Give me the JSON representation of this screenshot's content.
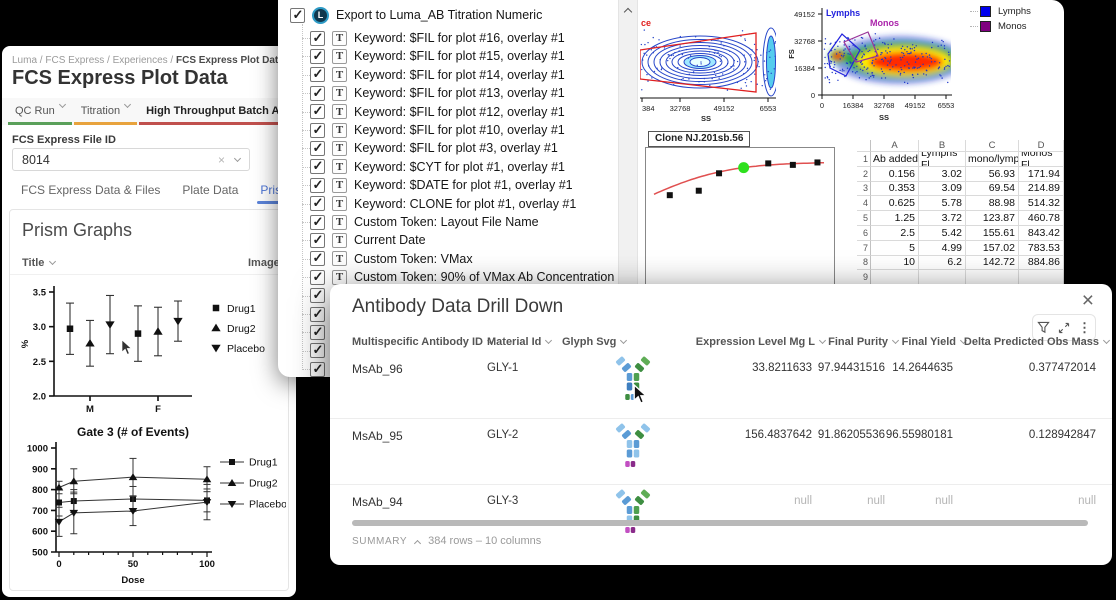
{
  "fcs_window": {
    "breadcrumb": [
      "Luma",
      "FCS Express",
      "Experiences",
      "FCS Express Plot Data"
    ],
    "title": "FCS Express Plot Data",
    "workflow_tabs": [
      {
        "label": "QC Run",
        "underline": "#5aa05a",
        "active": false
      },
      {
        "label": "Titration",
        "underline": "#e8a33d",
        "active": false
      },
      {
        "label": "High Throughput Batch Analysis",
        "underline": "#c0504d",
        "active": true
      }
    ],
    "file_id_label": "FCS Express File ID",
    "file_id_value": "8014",
    "data_tabs": [
      {
        "label": "FCS Express Data & Files",
        "active": false
      },
      {
        "label": "Plate Data",
        "active": false
      },
      {
        "label": "Prism Data",
        "active": true
      }
    ],
    "section_title": "Prism Graphs",
    "col_title": "Title",
    "col_image": "Image Url"
  },
  "export_panel": {
    "root_label": "Export to Luma_AB Titration Numeric",
    "root_icon_letter": "L",
    "item_icon_letter": "T",
    "items": [
      "Keyword: $FIL for plot #16, overlay #1",
      "Keyword: $FIL for plot #15, overlay #1",
      "Keyword: $FIL for plot #14, overlay #1",
      "Keyword: $FIL for plot #13, overlay #1",
      "Keyword: $FIL for plot #12, overlay #1",
      "Keyword: $FIL for plot #10, overlay #1",
      "Keyword: $FIL for plot #3, overlay #1",
      "Keyword: $CYT for plot #1, overlay #1",
      "Keyword: $DATE for plot #1, overlay #1",
      "Keyword: CLONE for plot #1, overlay #1",
      "Custom Token: Layout File Name",
      "Current Date",
      "Custom Token: VMax",
      "Custom Token: 90% of VMax Ab Concentration"
    ],
    "truncated_item_count": 5
  },
  "flow": {
    "plot1": {
      "gate_label_partial": "ce",
      "xticks": [
        "384",
        "32768",
        "49152",
        "6553"
      ],
      "xlabel": "SS"
    },
    "plot2": {
      "ylabel": "FS",
      "yticks": [
        "49152",
        "32768",
        "16384",
        "0"
      ],
      "xticks": [
        "0",
        "16384",
        "32768",
        "49152",
        "6553"
      ],
      "xlabel": "SS",
      "gate_labels": [
        {
          "text": "Lymphs",
          "color": "#2222dd"
        },
        {
          "text": "Monos",
          "color": "#aa22aa"
        }
      ]
    },
    "legend": [
      {
        "label": "Lymphs",
        "color": "#0000ee"
      },
      {
        "label": "Monos",
        "color": "#800080"
      }
    ],
    "clone_label": "Clone NJ.201sb.56"
  },
  "chart_data": [
    {
      "id": "percent_by_sex",
      "type": "scatter-error",
      "categories": [
        "M",
        "F"
      ],
      "ylabel": "%",
      "ylim": [
        2.0,
        3.5
      ],
      "yticks": [
        2.0,
        2.5,
        3.0,
        3.5
      ],
      "legend_position": "right",
      "series": [
        {
          "name": "Drug1",
          "marker": "square",
          "means": [
            2.97,
            2.9
          ],
          "errors": [
            0.37,
            0.4
          ]
        },
        {
          "name": "Drug2",
          "marker": "triangle-up",
          "means": [
            2.76,
            2.93
          ],
          "errors": [
            0.33,
            0.35
          ]
        },
        {
          "name": "Placebo",
          "marker": "triangle-down",
          "means": [
            3.03,
            3.08
          ],
          "errors": [
            0.42,
            0.29
          ]
        }
      ]
    },
    {
      "id": "gate3_events",
      "type": "line-error",
      "title": "Gate 3 (# of Events)",
      "xlabel": "Dose",
      "x": [
        0,
        10,
        50,
        100
      ],
      "xticks": [
        0,
        50,
        100
      ],
      "ylim": [
        500,
        1000
      ],
      "yticks": [
        500,
        600,
        700,
        800,
        900,
        1000
      ],
      "legend_position": "right",
      "series": [
        {
          "name": "Drug1",
          "marker": "square",
          "values": [
            738,
            745,
            755,
            748
          ],
          "errors": [
            65,
            55,
            60,
            55
          ]
        },
        {
          "name": "Drug2",
          "marker": "triangle-up",
          "values": [
            810,
            840,
            860,
            850
          ],
          "errors": [
            30,
            60,
            90,
            60
          ]
        },
        {
          "name": "Placebo",
          "marker": "triangle-down",
          "values": [
            645,
            688,
            697,
            740
          ],
          "errors": [
            70,
            100,
            70,
            85
          ]
        }
      ]
    },
    {
      "id": "titration_curve",
      "type": "scatter-curve",
      "annotation": "Clone NJ.201sb.56",
      "points_x": [
        0.156,
        0.353,
        0.625,
        1.25,
        2.5,
        5,
        10
      ],
      "points_y": [
        171.94,
        214.89,
        514.32,
        460.78,
        843.42,
        783.53,
        884.86
      ],
      "highlight_index": 3,
      "highlight_color": "#2ee01e",
      "curve_color": "#e05050",
      "fit": {
        "vmax": 900,
        "kd": 0.4
      }
    },
    {
      "id": "ab_table",
      "type": "table",
      "col_letters": [
        "A",
        "B",
        "C",
        "D"
      ],
      "row_numbers": [
        "1",
        "2",
        "3",
        "4",
        "5",
        "6",
        "7",
        "8",
        "9"
      ],
      "headers": [
        "Ab added",
        "Lymphs Fl",
        "mono/lymph",
        "Monos Fl"
      ],
      "rows": [
        [
          0.156,
          3.02,
          56.93,
          171.94
        ],
        [
          0.353,
          3.09,
          69.54,
          214.89
        ],
        [
          0.625,
          5.78,
          88.98,
          514.32
        ],
        [
          1.25,
          3.72,
          123.87,
          460.78
        ],
        [
          2.5,
          5.42,
          155.61,
          843.42
        ],
        [
          5,
          4.99,
          157.02,
          783.53
        ],
        [
          10,
          6.2,
          142.72,
          884.86
        ]
      ]
    }
  ],
  "drilldown": {
    "title": "Antibody Data Drill Down",
    "columns": [
      "Multispecific Antibody ID",
      "Material Id",
      "Glyph Svg",
      "Expression Level Mg L",
      "Final Purity",
      "Final Yield",
      "Delta Predicted Obs Mass"
    ],
    "rows": [
      {
        "antibody_id": "MsAb_96",
        "material_id": "GLY-1",
        "null_row": false,
        "glyph": {
          "left": [
            "#8fc3ea",
            "#5b9bd5"
          ],
          "right": [
            "#5fad56",
            "#3e8e41"
          ],
          "stem": [
            "#5b9bd5",
            "#4fa050",
            "#3e7fbf",
            "#3e8e41"
          ],
          "tip": [
            "#3e8e41",
            "#5b9bd5"
          ]
        },
        "values": [
          "33.8211633",
          "97.94431516",
          "14.2644635",
          "0.377472014"
        ]
      },
      {
        "antibody_id": "MsAb_95",
        "material_id": "GLY-2",
        "null_row": false,
        "glyph": {
          "left": [
            "#8fc3ea",
            "#5b9bd5"
          ],
          "right": [
            "#8fc3ea",
            "#3e8e41"
          ],
          "stem": [
            "#8fc3ea",
            "#5b9bd5",
            "#5b9bd5",
            "#8fc3ea"
          ],
          "tip": [
            "#c24fc2",
            "#8a2b8a"
          ]
        },
        "values": [
          "156.4837642",
          "91.86205536",
          "96.55980181",
          "0.128942847"
        ]
      },
      {
        "antibody_id": "MsAb_94",
        "material_id": "GLY-3",
        "null_row": true,
        "glyph": {
          "left": [
            "#8fc3ea",
            "#5b9bd5"
          ],
          "right": [
            "#5fad56",
            "#3e8e41"
          ],
          "stem": [
            "#5b9bd5",
            "#4fa050",
            "#8fc3ea",
            "#3e8e41"
          ],
          "tip": [
            "#c24fc2",
            "#8a2b8a"
          ]
        },
        "values": [
          "null",
          "null",
          "null",
          "null"
        ]
      }
    ],
    "summary_label": "SUMMARY",
    "summary_text": "384 rows – 10 columns"
  }
}
